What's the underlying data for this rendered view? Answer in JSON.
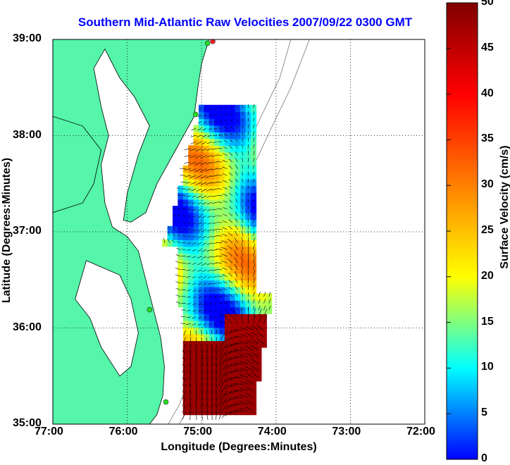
{
  "title": "Southern Mid-Atlantic Raw Velocities 2007/09/22 0300 GMT",
  "xaxis": {
    "label": "Longitude (Degrees:Minutes)",
    "ticks": [
      "77:00",
      "76:00",
      "75:00",
      "74:00",
      "73:00",
      "72:00"
    ]
  },
  "yaxis": {
    "label": "Latitude (Degrees:Minutes)",
    "ticks": [
      "39:00",
      "38:00",
      "37:00",
      "36:00",
      "35:00"
    ]
  },
  "colorbar": {
    "label": "Surface Velocity (cm/s)",
    "ticks": [
      "50",
      "45",
      "40",
      "35",
      "30",
      "25",
      "20",
      "15",
      "10",
      "5",
      "0"
    ],
    "range": [
      0,
      50
    ],
    "colors": [
      "#0000ff",
      "#00ffff",
      "#ffff00",
      "#ff8000",
      "#ff0000",
      "#800000"
    ]
  },
  "colors": {
    "land": "#55f5aa",
    "coast": "#000000",
    "bathymetry": "#909090",
    "grid": "#000000",
    "station": "#22dd22",
    "station_alt": "#ee2222"
  },
  "map_extent": {
    "lon": [
      -77,
      -72
    ],
    "lat": [
      35,
      39
    ]
  },
  "stations": [
    {
      "lon": -74.85,
      "lat": 38.98,
      "color": "#ee2222"
    },
    {
      "lon": -74.92,
      "lat": 38.96,
      "color": "#22dd22"
    },
    {
      "lon": -75.08,
      "lat": 38.22,
      "color": "#22dd22"
    },
    {
      "lon": -75.7,
      "lat": 36.19,
      "color": "#22dd22"
    },
    {
      "lon": -75.48,
      "lat": 35.23,
      "color": "#22dd22"
    }
  ]
}
